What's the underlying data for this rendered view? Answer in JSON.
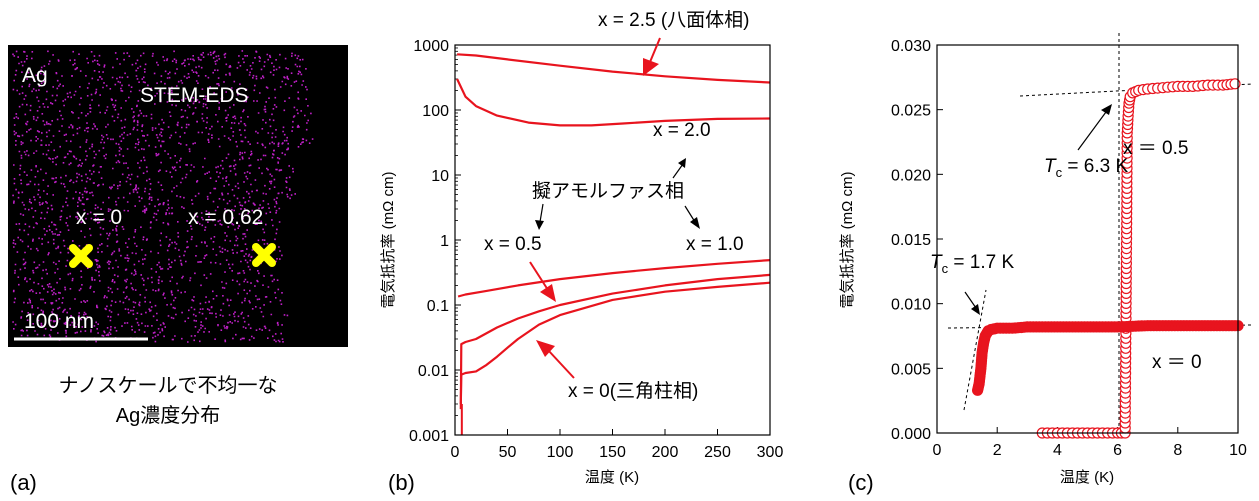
{
  "panel_a": {
    "element_label": "Ag",
    "technique_label": "STEM-EDS",
    "marker_1_label": "x = 0",
    "marker_2_label": "x = 0.62",
    "scale_bar_label": "100 nm",
    "caption_line1": "ナノスケールで不均一な",
    "caption_line2": "Ag濃度分布",
    "panel_label": "(a)",
    "dot_color": "#c020c8",
    "marker_color": "#ffff00"
  },
  "panel_b": {
    "panel_label": "(b)",
    "xlabel": "温度 (K)",
    "ylabel": "電気抵抗率 (mΩ cm)",
    "annotations": {
      "x25": "x = 2.5 (八面体相)",
      "x20": "x = 2.0",
      "amorphous": "擬アモルファス相",
      "x05": "x = 0.5",
      "x10": "x = 1.0",
      "x0": "x = 0(三角柱相)"
    }
  },
  "panel_c": {
    "panel_label": "(c)",
    "xlabel": "温度 (K)",
    "ylabel": "電気抵抗率 (mΩ cm)",
    "tc1_symbol": "T",
    "tc1_sub": "c",
    "tc1_value": " = 6.3 K",
    "tc2_symbol": "T",
    "tc2_sub": "c",
    "tc2_value": " = 1.7 K",
    "x05_label": "x ＝ 0.5",
    "x0_label": "x ＝ 0"
  },
  "chart_data": [
    {
      "type": "line",
      "xlabel": "温度 (K)",
      "ylabel": "電気抵抗率 (mΩ cm)",
      "xlim": [
        0,
        300
      ],
      "ylim": [
        0.001,
        1000
      ],
      "yscale": "log",
      "x_ticks": [
        0,
        50,
        100,
        150,
        200,
        250,
        300
      ],
      "y_ticks": [
        0.001,
        0.01,
        0.1,
        1,
        10,
        100,
        1000
      ],
      "y_tick_labels": [
        "0.001",
        "0.01",
        "0.1",
        "1",
        "10",
        "100",
        "1000"
      ],
      "color": "#e8141e",
      "series": [
        {
          "name": "x = 2.5 (八面体相)",
          "x": [
            2,
            20,
            50,
            100,
            150,
            200,
            250,
            300
          ],
          "y": [
            720,
            690,
            600,
            480,
            390,
            330,
            290,
            265
          ]
        },
        {
          "name": "x = 2.0",
          "x": [
            2,
            10,
            20,
            40,
            70,
            100,
            130,
            160,
            200,
            250,
            300
          ],
          "y": [
            300,
            160,
            115,
            82,
            64,
            58,
            58,
            62,
            68,
            73,
            74
          ]
        },
        {
          "name": "x = 0.5",
          "x": [
            3,
            10,
            30,
            60,
            100,
            150,
            200,
            250,
            300
          ],
          "y": [
            0.135,
            0.145,
            0.165,
            0.2,
            0.25,
            0.31,
            0.37,
            0.43,
            0.49
          ]
        },
        {
          "name": "x = 1.0",
          "x": [
            5.5,
            6,
            10,
            20,
            40,
            60,
            80,
            100,
            150,
            200,
            250,
            300
          ],
          "y": [
            0.0025,
            0.025,
            0.027,
            0.03,
            0.045,
            0.062,
            0.08,
            0.1,
            0.15,
            0.2,
            0.25,
            0.29
          ]
        },
        {
          "name": "x = 0(三角柱相)",
          "x": [
            5.5,
            6,
            10,
            20,
            30,
            40,
            50,
            60,
            80,
            100,
            150,
            200,
            250,
            300
          ],
          "y": [
            0.003,
            0.0085,
            0.009,
            0.0095,
            0.012,
            0.016,
            0.022,
            0.03,
            0.05,
            0.07,
            0.12,
            0.16,
            0.19,
            0.22
          ]
        }
      ]
    },
    {
      "type": "scatter",
      "xlabel": "温度 (K)",
      "ylabel": "電気抵抗率 (mΩ cm)",
      "xlim": [
        0,
        10
      ],
      "ylim": [
        0,
        0.03
      ],
      "x_ticks": [
        0,
        2,
        4,
        6,
        8,
        10
      ],
      "y_ticks": [
        0,
        0.005,
        0.01,
        0.015,
        0.02,
        0.025,
        0.03
      ],
      "y_tick_labels": [
        "0.000",
        "0.005",
        "0.010",
        "0.015",
        "0.020",
        "0.025",
        "0.030"
      ],
      "color": "#e8141e",
      "series": [
        {
          "name": "x ＝ 0.5",
          "marker": "open-circle",
          "tc": 6.3,
          "x": [
            3.5,
            4.0,
            4.5,
            5.0,
            5.5,
            6.0,
            6.25,
            6.3,
            6.32,
            6.35,
            6.38,
            6.42,
            6.5,
            6.7,
            7.0,
            7.5,
            8.0,
            8.5,
            9.0,
            9.5,
            9.9
          ],
          "y": [
            0,
            0,
            0,
            0,
            0,
            0,
            0,
            0.0158,
            0.0232,
            0.0245,
            0.0255,
            0.026,
            0.0263,
            0.0265,
            0.0266,
            0.0267,
            0.0268,
            0.0268,
            0.0269,
            0.0269,
            0.027
          ]
        },
        {
          "name": "x ＝ 0",
          "marker": "filled-circle",
          "tc": 1.7,
          "x": [
            1.35,
            1.4,
            1.45,
            1.5,
            1.55,
            1.6,
            1.7,
            1.8,
            2.0,
            2.5,
            3.0,
            4.0,
            5.0,
            6.0,
            7.0,
            8.0,
            9.0,
            10.0
          ],
          "y": [
            0.0033,
            0.0038,
            0.0048,
            0.0062,
            0.007,
            0.0075,
            0.0079,
            0.008,
            0.0081,
            0.0081,
            0.0082,
            0.0082,
            0.0082,
            0.0082,
            0.0083,
            0.0083,
            0.0083,
            0.0083
          ]
        }
      ]
    }
  ]
}
